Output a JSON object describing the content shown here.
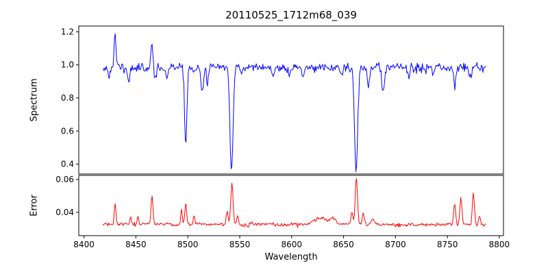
{
  "title": "20110525_1712m68_039",
  "xlabel": "Wavelength",
  "axes": {
    "xlim": [
      8395,
      8804
    ],
    "xticks": [
      {
        "v": 8400,
        "label": "8400"
      },
      {
        "v": 8450,
        "label": "8450"
      },
      {
        "v": 8500,
        "label": "8500"
      },
      {
        "v": 8550,
        "label": "8550"
      },
      {
        "v": 8600,
        "label": "8600"
      },
      {
        "v": 8650,
        "label": "8650"
      },
      {
        "v": 8700,
        "label": "8700"
      },
      {
        "v": 8750,
        "label": "8750"
      },
      {
        "v": 8800,
        "label": "8800"
      }
    ]
  },
  "chart_data": [
    {
      "type": "line",
      "name": "spectrum",
      "ylabel": "Spectrum",
      "color": "#0000ff",
      "ylim": [
        0.34,
        1.235
      ],
      "yticks": [
        {
          "v": 0.4,
          "label": "0.4"
        },
        {
          "v": 0.6,
          "label": "0.6"
        },
        {
          "v": 0.8,
          "label": "0.8"
        },
        {
          "v": 1.0,
          "label": "1.0"
        },
        {
          "v": 1.2,
          "label": "1.2"
        }
      ],
      "x_start": 8418,
      "x_end": 8787,
      "n_points": 520,
      "baseline": 0.985,
      "noise_sigma": 0.013,
      "noise_lf": 0.012,
      "seed": 11,
      "features": [
        {
          "center": 8424.0,
          "amp": -0.06,
          "width": 1.0
        },
        {
          "center": 8430.0,
          "amp": 0.2,
          "width": 0.9
        },
        {
          "center": 8443.0,
          "amp": -0.09,
          "width": 1.0
        },
        {
          "center": 8465.5,
          "amp": 0.13,
          "width": 0.9
        },
        {
          "center": 8468.5,
          "amp": -0.07,
          "width": 1.0
        },
        {
          "center": 8480.0,
          "amp": -0.05,
          "width": 1.0
        },
        {
          "center": 8498.0,
          "amp": -0.48,
          "width": 1.1
        },
        {
          "center": 8514.0,
          "amp": -0.16,
          "width": 1.2
        },
        {
          "center": 8519.0,
          "amp": -0.1,
          "width": 1.0
        },
        {
          "center": 8542.1,
          "amp": -0.63,
          "width": 1.5
        },
        {
          "center": 8552.0,
          "amp": -0.05,
          "width": 1.0
        },
        {
          "center": 8582.0,
          "amp": -0.06,
          "width": 1.0
        },
        {
          "center": 8598.0,
          "amp": -0.05,
          "width": 1.0
        },
        {
          "center": 8611.0,
          "amp": -0.05,
          "width": 1.0
        },
        {
          "center": 8648.0,
          "amp": -0.06,
          "width": 1.0
        },
        {
          "center": 8662.1,
          "amp": -0.62,
          "width": 1.5
        },
        {
          "center": 8674.0,
          "amp": -0.12,
          "width": 1.1
        },
        {
          "center": 8688.0,
          "amp": -0.14,
          "width": 1.2
        },
        {
          "center": 8713.0,
          "amp": -0.06,
          "width": 1.0
        },
        {
          "center": 8736.0,
          "amp": -0.05,
          "width": 1.0
        },
        {
          "center": 8757.0,
          "amp": -0.09,
          "width": 1.0
        },
        {
          "center": 8772.0,
          "amp": -0.07,
          "width": 1.0
        }
      ]
    },
    {
      "type": "line",
      "name": "error",
      "ylabel": "Error",
      "color": "#ff0000",
      "ylim": [
        0.0258,
        0.0625
      ],
      "yticks": [
        {
          "v": 0.04,
          "label": "0.04"
        },
        {
          "v": 0.06,
          "label": "0.06"
        }
      ],
      "x_start": 8418,
      "x_end": 8787,
      "n_points": 520,
      "baseline": 0.0325,
      "noise_sigma": 0.0005,
      "noise_lf": 0.0008,
      "seed": 23,
      "features": [
        {
          "center": 8430.0,
          "amp": 0.0125,
          "width": 0.8
        },
        {
          "center": 8445.0,
          "amp": 0.004,
          "width": 0.8
        },
        {
          "center": 8452.0,
          "amp": 0.005,
          "width": 0.8
        },
        {
          "center": 8465.5,
          "amp": 0.0175,
          "width": 0.9
        },
        {
          "center": 8494.0,
          "amp": 0.009,
          "width": 0.8
        },
        {
          "center": 8498.0,
          "amp": 0.013,
          "width": 0.9
        },
        {
          "center": 8506.0,
          "amp": 0.006,
          "width": 0.8
        },
        {
          "center": 8538.0,
          "amp": 0.008,
          "width": 0.9
        },
        {
          "center": 8542.5,
          "amp": 0.0255,
          "width": 1.1
        },
        {
          "center": 8548.0,
          "amp": 0.006,
          "width": 0.9
        },
        {
          "center": 8560.0,
          "amp": 0.002,
          "width": 1.0
        },
        {
          "center": 8628.0,
          "amp": 0.004,
          "width": 6.0
        },
        {
          "center": 8640.0,
          "amp": 0.003,
          "width": 3.0
        },
        {
          "center": 8658.0,
          "amp": 0.007,
          "width": 1.0
        },
        {
          "center": 8662.3,
          "amp": 0.029,
          "width": 1.1
        },
        {
          "center": 8669.0,
          "amp": 0.006,
          "width": 1.0
        },
        {
          "center": 8678.0,
          "amp": 0.003,
          "width": 1.5
        },
        {
          "center": 8757.0,
          "amp": 0.013,
          "width": 1.0
        },
        {
          "center": 8763.0,
          "amp": 0.017,
          "width": 1.0
        },
        {
          "center": 8775.0,
          "amp": 0.019,
          "width": 1.0
        },
        {
          "center": 8781.0,
          "amp": 0.006,
          "width": 0.9
        }
      ]
    }
  ]
}
